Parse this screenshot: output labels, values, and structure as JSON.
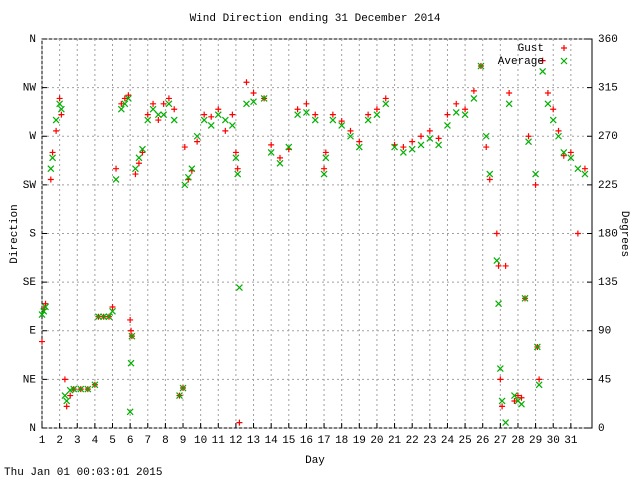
{
  "chart_data": {
    "type": "scatter",
    "title": "Wind Direction ending 31 December 2014",
    "x_label": "Day",
    "y_label": "Direction",
    "y2_label": "Degrees",
    "footer": "Thu Jan 01 00:03:01 2015",
    "legend": "top-right",
    "grid": true,
    "xlim": [
      1,
      32.2
    ],
    "xticks": [
      1,
      2,
      3,
      4,
      5,
      6,
      7,
      8,
      9,
      10,
      11,
      12,
      13,
      14,
      15,
      16,
      17,
      18,
      19,
      20,
      21,
      22,
      23,
      24,
      25,
      26,
      27,
      28,
      29,
      30,
      31
    ],
    "ylim": [
      0,
      360
    ],
    "yticks": [
      {
        "value": 0,
        "label": "N"
      },
      {
        "value": 45,
        "label": "NE"
      },
      {
        "value": 90,
        "label": "E"
      },
      {
        "value": 135,
        "label": "SE"
      },
      {
        "value": 180,
        "label": "S"
      },
      {
        "value": 225,
        "label": "SW"
      },
      {
        "value": 270,
        "label": "W"
      },
      {
        "value": 315,
        "label": "NW"
      },
      {
        "value": 360,
        "label": "N"
      }
    ],
    "y2lim": [
      0,
      360
    ],
    "y2ticks": [
      0,
      45,
      90,
      135,
      180,
      225,
      270,
      315,
      360
    ],
    "x": [
      1.0,
      1.1,
      1.2,
      1.5,
      1.6,
      1.8,
      2.0,
      2.1,
      2.3,
      2.4,
      2.6,
      2.8,
      3.2,
      3.6,
      4.0,
      4.2,
      4.5,
      4.8,
      5.0,
      5.2,
      5.5,
      5.7,
      5.9,
      6.0,
      6.05,
      6.1,
      6.3,
      6.5,
      6.7,
      7.0,
      7.3,
      7.6,
      7.9,
      8.2,
      8.5,
      8.8,
      9.0,
      9.1,
      9.3,
      9.5,
      9.8,
      10.2,
      10.6,
      11.0,
      11.4,
      11.8,
      12.0,
      12.1,
      12.2,
      12.6,
      13.0,
      13.6,
      14.0,
      14.5,
      15.0,
      15.5,
      16.0,
      16.5,
      17.0,
      17.1,
      17.5,
      18.0,
      18.5,
      19.0,
      19.5,
      20.0,
      20.5,
      21.0,
      21.5,
      22.0,
      22.5,
      23.0,
      23.5,
      24.0,
      24.5,
      25.0,
      25.5,
      25.9,
      26.2,
      26.4,
      26.8,
      26.9,
      27.0,
      27.1,
      27.3,
      27.5,
      27.8,
      28.0,
      28.2,
      28.4,
      28.6,
      29.0,
      29.1,
      29.2,
      29.4,
      29.7,
      30.0,
      30.3,
      30.6,
      31.0,
      31.4,
      31.8
    ],
    "series": [
      {
        "name": "Gust",
        "color": "#ff0000",
        "marker": "plus",
        "values": [
          80,
          110,
          115,
          230,
          255,
          275,
          305,
          290,
          45,
          20,
          30,
          36,
          36,
          36,
          40,
          103,
          103,
          103,
          112,
          240,
          300,
          305,
          308,
          100,
          90,
          85,
          235,
          245,
          255,
          290,
          300,
          285,
          300,
          305,
          295,
          30,
          37,
          260,
          230,
          238,
          265,
          290,
          288,
          295,
          275,
          290,
          255,
          240,
          5,
          320,
          310,
          305,
          262,
          250,
          258,
          295,
          300,
          290,
          240,
          255,
          290,
          284,
          275,
          265,
          290,
          295,
          305,
          262,
          260,
          265,
          270,
          275,
          268,
          290,
          300,
          295,
          312,
          335,
          260,
          230,
          180,
          150,
          45,
          20,
          150,
          310,
          25,
          30,
          28,
          120,
          270,
          225,
          75,
          45,
          340,
          310,
          295,
          275,
          252,
          255,
          180,
          240
        ]
      },
      {
        "name": "Average",
        "color": "#00b000",
        "marker": "cross",
        "values": [
          105,
          108,
          112,
          240,
          250,
          285,
          300,
          295,
          30,
          25,
          35,
          36,
          36,
          36,
          40,
          103,
          103,
          103,
          108,
          230,
          295,
          300,
          305,
          15,
          60,
          85,
          240,
          250,
          258,
          285,
          295,
          290,
          290,
          300,
          285,
          30,
          37,
          225,
          232,
          240,
          270,
          285,
          280,
          290,
          285,
          280,
          250,
          235,
          130,
          300,
          302,
          305,
          255,
          245,
          260,
          290,
          292,
          285,
          235,
          250,
          285,
          280,
          270,
          260,
          285,
          290,
          300,
          260,
          255,
          258,
          262,
          268,
          262,
          280,
          292,
          290,
          305,
          335,
          270,
          235,
          155,
          115,
          55,
          25,
          5,
          300,
          30,
          25,
          22,
          120,
          265,
          235,
          75,
          40,
          330,
          300,
          285,
          270,
          255,
          250,
          240,
          235
        ]
      }
    ]
  }
}
